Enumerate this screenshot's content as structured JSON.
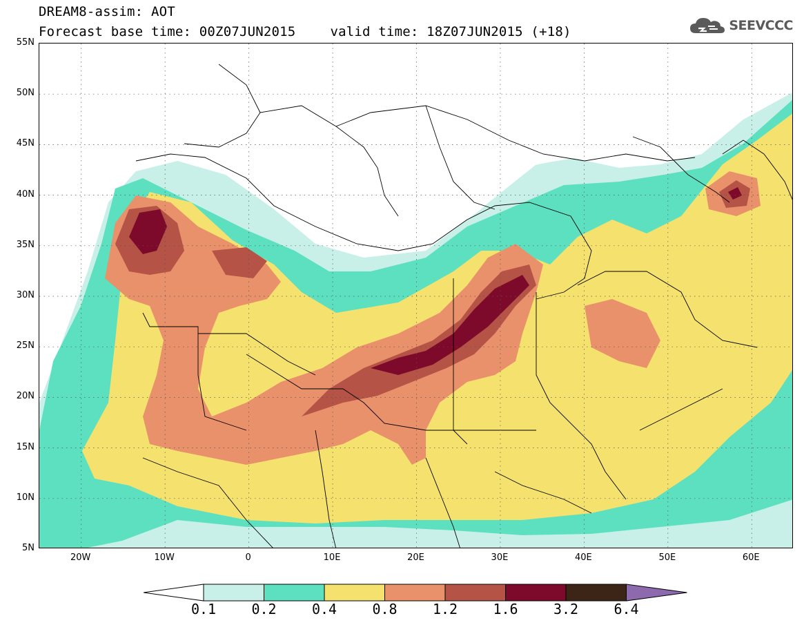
{
  "header": {
    "title_line1": "DREAM8-assim: AOT",
    "forecast_base": "Forecast base time: 00Z07JUN2015",
    "valid_time": "valid time: 18Z07JUN2015 (+18)"
  },
  "logo": {
    "text": "SEEVCCC",
    "icon": "cloud-icon",
    "color": "#5a5a5a"
  },
  "map": {
    "lon_range": [
      -25,
      65
    ],
    "lat_range": [
      5,
      55
    ],
    "lat_labels": [
      "55N",
      "50N",
      "45N",
      "40N",
      "35N",
      "30N",
      "25N",
      "20N",
      "15N",
      "10N",
      "5N"
    ],
    "lon_labels": [
      "20W",
      "10W",
      "0",
      "10E",
      "20E",
      "30E",
      "40E",
      "50E",
      "60E"
    ]
  },
  "colorbar": {
    "levels": [
      "0.1",
      "0.2",
      "0.4",
      "0.8",
      "1.2",
      "1.6",
      "3.2",
      "6.4"
    ],
    "colors": [
      "#ffffff",
      "#c8f0e8",
      "#5de0c0",
      "#f5e16e",
      "#e9916a",
      "#b45346",
      "#7d0a2a",
      "#3c2416",
      "#8d6aae"
    ]
  }
}
